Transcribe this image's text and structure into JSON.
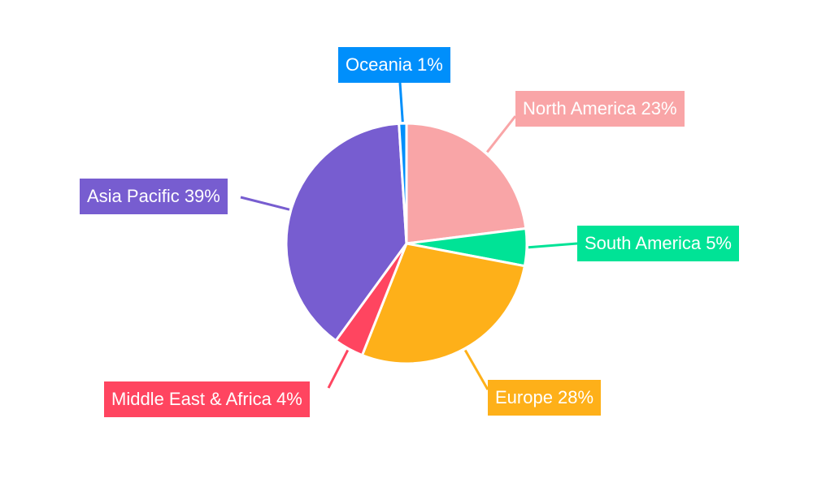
{
  "chart_data": {
    "type": "pie",
    "start_angle": "12 o'clock, clockwise",
    "slices": [
      {
        "label": "North America",
        "value": 23,
        "display": "North America 23%",
        "color": "#f9a5a7"
      },
      {
        "label": "South America",
        "value": 5,
        "display": "South America 5%",
        "color": "#00e396"
      },
      {
        "label": "Europe",
        "value": 28,
        "display": "Europe 28%",
        "color": "#feb019"
      },
      {
        "label": "Middle East & Africa",
        "value": 4,
        "display": "Middle East & Africa 4%",
        "color": "#ff4560"
      },
      {
        "label": "Asia Pacific",
        "value": 39,
        "display": "Asia Pacific 39%",
        "color": "#775dd0"
      },
      {
        "label": "Oceania",
        "value": 1,
        "display": "Oceania 1%",
        "color": "#008ffb"
      }
    ],
    "legend": "none",
    "labels": "outside with leader lines"
  }
}
